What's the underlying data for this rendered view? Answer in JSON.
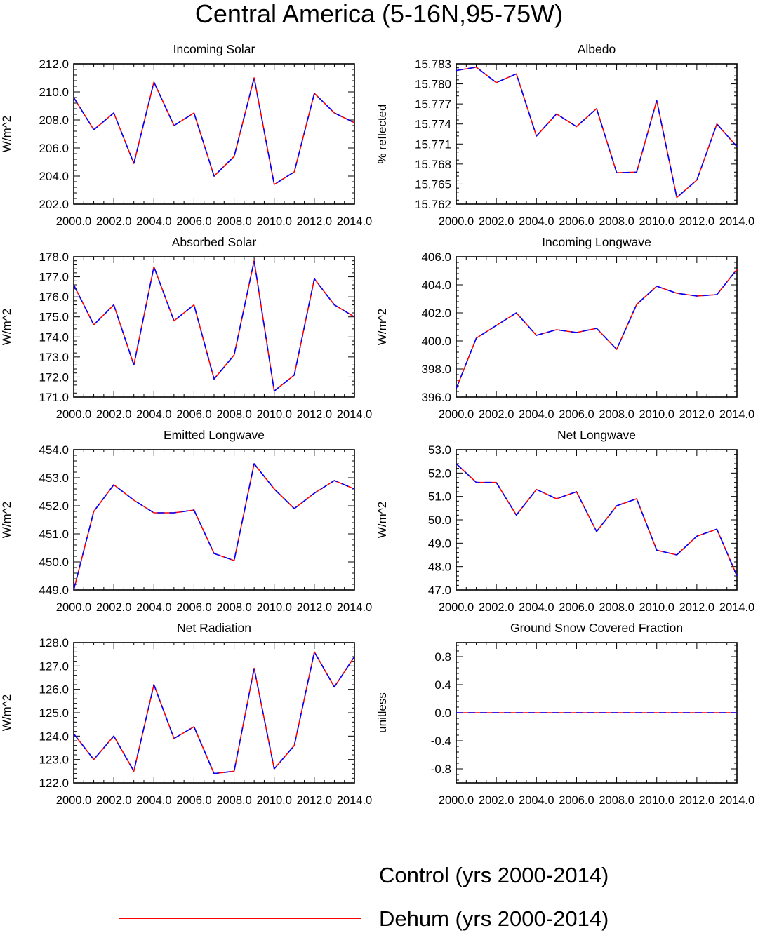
{
  "title": "Central America (5-16N,95-75W)",
  "legend": {
    "items": [
      {
        "label": "Control (yrs 2000-2014)",
        "color": "#0000ff",
        "style": "dashed"
      },
      {
        "label": "Dehum (yrs 2000-2014)",
        "color": "#ff0000",
        "style": "solid"
      }
    ]
  },
  "chart_data": [
    {
      "type": "line",
      "title": "Incoming Solar",
      "xlabel": "",
      "ylabel": "W/m^2",
      "xlim": [
        2000,
        2014
      ],
      "ylim": [
        202,
        212
      ],
      "xticks": [
        2000,
        2002,
        2004,
        2006,
        2008,
        2010,
        2012,
        2014
      ],
      "xtick_labels": [
        "2000.0",
        "2002.0",
        "2004.0",
        "2006.0",
        "2008.0",
        "2010.0",
        "2012.0",
        "2014.0"
      ],
      "yticks": [
        202,
        204,
        206,
        208,
        210,
        212
      ],
      "ytick_labels": [
        "202.0",
        "204.0",
        "206.0",
        "208.0",
        "210.0",
        "212.0"
      ],
      "x": [
        2000,
        2001,
        2002,
        2003,
        2004,
        2005,
        2006,
        2007,
        2008,
        2009,
        2010,
        2011,
        2012,
        2013,
        2014
      ],
      "series": [
        {
          "name": "Control (yrs 2000-2014)",
          "values": [
            209.6,
            207.3,
            208.5,
            204.9,
            210.7,
            207.6,
            208.5,
            204.0,
            205.4,
            211.0,
            203.4,
            204.3,
            209.9,
            208.5,
            207.8
          ]
        },
        {
          "name": "Dehum (yrs 2000-2014)",
          "values": [
            209.6,
            207.3,
            208.5,
            204.9,
            210.7,
            207.6,
            208.5,
            204.0,
            205.4,
            211.0,
            203.4,
            204.3,
            209.9,
            208.5,
            207.8
          ]
        }
      ]
    },
    {
      "type": "line",
      "title": "Albedo",
      "xlabel": "",
      "ylabel": "% reflected",
      "xlim": [
        2000,
        2014
      ],
      "ylim": [
        15.762,
        15.783
      ],
      "xticks": [
        2000,
        2002,
        2004,
        2006,
        2008,
        2010,
        2012,
        2014
      ],
      "xtick_labels": [
        "2000.0",
        "2002.0",
        "2004.0",
        "2006.0",
        "2008.0",
        "2010.0",
        "2012.0",
        "2014.0"
      ],
      "yticks": [
        15.762,
        15.765,
        15.768,
        15.771,
        15.774,
        15.777,
        15.78,
        15.783
      ],
      "ytick_labels": [
        "15.762",
        "15.765",
        "15.768",
        "15.771",
        "15.774",
        "15.777",
        "15.780",
        "15.783"
      ],
      "x": [
        2000,
        2001,
        2002,
        2003,
        2004,
        2005,
        2006,
        2007,
        2008,
        2009,
        2010,
        2011,
        2012,
        2013,
        2014
      ],
      "series": [
        {
          "name": "Control (yrs 2000-2014)",
          "values": [
            15.782,
            15.7825,
            15.7802,
            15.7815,
            15.7722,
            15.7755,
            15.7736,
            15.7763,
            15.7667,
            15.7668,
            15.7775,
            15.763,
            15.7656,
            15.774,
            15.7706
          ]
        },
        {
          "name": "Dehum (yrs 2000-2014)",
          "values": [
            15.782,
            15.7825,
            15.7802,
            15.7815,
            15.7722,
            15.7755,
            15.7736,
            15.7763,
            15.7667,
            15.7668,
            15.7775,
            15.763,
            15.7656,
            15.774,
            15.7706
          ]
        }
      ]
    },
    {
      "type": "line",
      "title": "Absorbed Solar",
      "xlabel": "",
      "ylabel": "W/m^2",
      "xlim": [
        2000,
        2014
      ],
      "ylim": [
        171,
        178
      ],
      "xticks": [
        2000,
        2002,
        2004,
        2006,
        2008,
        2010,
        2012,
        2014
      ],
      "xtick_labels": [
        "2000.0",
        "2002.0",
        "2004.0",
        "2006.0",
        "2008.0",
        "2010.0",
        "2012.0",
        "2014.0"
      ],
      "yticks": [
        171,
        172,
        173,
        174,
        175,
        176,
        177,
        178
      ],
      "ytick_labels": [
        "171.0",
        "172.0",
        "173.0",
        "174.0",
        "175.0",
        "176.0",
        "177.0",
        "178.0"
      ],
      "x": [
        2000,
        2001,
        2002,
        2003,
        2004,
        2005,
        2006,
        2007,
        2008,
        2009,
        2010,
        2011,
        2012,
        2013,
        2014
      ],
      "series": [
        {
          "name": "Control (yrs 2000-2014)",
          "values": [
            176.6,
            174.6,
            175.6,
            172.6,
            177.5,
            174.8,
            175.6,
            171.9,
            173.1,
            177.8,
            171.3,
            172.1,
            176.9,
            175.6,
            175.0
          ]
        },
        {
          "name": "Dehum (yrs 2000-2014)",
          "values": [
            176.6,
            174.6,
            175.6,
            172.6,
            177.5,
            174.8,
            175.6,
            171.9,
            173.1,
            177.8,
            171.3,
            172.1,
            176.9,
            175.6,
            175.0
          ]
        }
      ]
    },
    {
      "type": "line",
      "title": "Incoming Longwave",
      "xlabel": "",
      "ylabel": "W/m^2",
      "xlim": [
        2000,
        2014
      ],
      "ylim": [
        396,
        406
      ],
      "xticks": [
        2000,
        2002,
        2004,
        2006,
        2008,
        2010,
        2012,
        2014
      ],
      "xtick_labels": [
        "2000.0",
        "2002.0",
        "2004.0",
        "2006.0",
        "2008.0",
        "2010.0",
        "2012.0",
        "2014.0"
      ],
      "yticks": [
        396,
        398,
        400,
        402,
        404,
        406
      ],
      "ytick_labels": [
        "396.0",
        "398.0",
        "400.0",
        "402.0",
        "404.0",
        "406.0"
      ],
      "x": [
        2000,
        2001,
        2002,
        2003,
        2004,
        2005,
        2006,
        2007,
        2008,
        2009,
        2010,
        2011,
        2012,
        2013,
        2014
      ],
      "series": [
        {
          "name": "Control (yrs 2000-2014)",
          "values": [
            396.6,
            400.2,
            401.1,
            402.0,
            400.4,
            400.8,
            400.6,
            400.9,
            399.4,
            402.6,
            403.9,
            403.4,
            403.2,
            403.3,
            405.1
          ]
        },
        {
          "name": "Dehum (yrs 2000-2014)",
          "values": [
            396.6,
            400.2,
            401.1,
            402.0,
            400.4,
            400.8,
            400.6,
            400.9,
            399.4,
            402.6,
            403.9,
            403.4,
            403.2,
            403.3,
            405.1
          ]
        }
      ]
    },
    {
      "type": "line",
      "title": "Emitted Longwave",
      "xlabel": "",
      "ylabel": "W/m^2",
      "xlim": [
        2000,
        2014
      ],
      "ylim": [
        449,
        454
      ],
      "xticks": [
        2000,
        2002,
        2004,
        2006,
        2008,
        2010,
        2012,
        2014
      ],
      "xtick_labels": [
        "2000.0",
        "2002.0",
        "2004.0",
        "2006.0",
        "2008.0",
        "2010.0",
        "2012.0",
        "2014.0"
      ],
      "yticks": [
        449,
        450,
        451,
        452,
        453,
        454
      ],
      "ytick_labels": [
        "449.0",
        "450.0",
        "451.0",
        "452.0",
        "453.0",
        "454.0"
      ],
      "x": [
        2000,
        2001,
        2002,
        2003,
        2004,
        2005,
        2006,
        2007,
        2008,
        2009,
        2010,
        2011,
        2012,
        2013,
        2014
      ],
      "series": [
        {
          "name": "Control (yrs 2000-2014)",
          "values": [
            449.0,
            451.8,
            452.75,
            452.2,
            451.75,
            451.75,
            451.85,
            450.3,
            450.05,
            453.5,
            452.6,
            451.9,
            452.45,
            452.9,
            452.6
          ]
        },
        {
          "name": "Dehum (yrs 2000-2014)",
          "values": [
            449.0,
            451.8,
            452.75,
            452.2,
            451.75,
            451.75,
            451.85,
            450.3,
            450.05,
            453.5,
            452.6,
            451.9,
            452.45,
            452.9,
            452.6
          ]
        }
      ]
    },
    {
      "type": "line",
      "title": "Net Longwave",
      "xlabel": "",
      "ylabel": "W/m^2",
      "xlim": [
        2000,
        2014
      ],
      "ylim": [
        47,
        53
      ],
      "xticks": [
        2000,
        2002,
        2004,
        2006,
        2008,
        2010,
        2012,
        2014
      ],
      "xtick_labels": [
        "2000.0",
        "2002.0",
        "2004.0",
        "2006.0",
        "2008.0",
        "2010.0",
        "2012.0",
        "2014.0"
      ],
      "yticks": [
        47,
        48,
        49,
        50,
        51,
        52,
        53
      ],
      "ytick_labels": [
        "47.0",
        "48.0",
        "49.0",
        "50.0",
        "51.0",
        "52.0",
        "53.0"
      ],
      "x": [
        2000,
        2001,
        2002,
        2003,
        2004,
        2005,
        2006,
        2007,
        2008,
        2009,
        2010,
        2011,
        2012,
        2013,
        2014
      ],
      "series": [
        {
          "name": "Control (yrs 2000-2014)",
          "values": [
            52.4,
            51.6,
            51.6,
            50.2,
            51.3,
            50.9,
            51.2,
            49.5,
            50.6,
            50.9,
            48.7,
            48.5,
            49.3,
            49.6,
            47.6
          ]
        },
        {
          "name": "Dehum (yrs 2000-2014)",
          "values": [
            52.4,
            51.6,
            51.6,
            50.2,
            51.3,
            50.9,
            51.2,
            49.5,
            50.6,
            50.9,
            48.7,
            48.5,
            49.3,
            49.6,
            47.6
          ]
        }
      ]
    },
    {
      "type": "line",
      "title": "Net Radiation",
      "xlabel": "",
      "ylabel": "W/m^2",
      "xlim": [
        2000,
        2014
      ],
      "ylim": [
        122,
        128
      ],
      "xticks": [
        2000,
        2002,
        2004,
        2006,
        2008,
        2010,
        2012,
        2014
      ],
      "xtick_labels": [
        "2000.0",
        "2002.0",
        "2004.0",
        "2006.0",
        "2008.0",
        "2010.0",
        "2012.0",
        "2014.0"
      ],
      "yticks": [
        122,
        123,
        124,
        125,
        126,
        127,
        128
      ],
      "ytick_labels": [
        "122.0",
        "123.0",
        "124.0",
        "125.0",
        "126.0",
        "127.0",
        "128.0"
      ],
      "x": [
        2000,
        2001,
        2002,
        2003,
        2004,
        2005,
        2006,
        2007,
        2008,
        2009,
        2010,
        2011,
        2012,
        2013,
        2014
      ],
      "series": [
        {
          "name": "Control (yrs 2000-2014)",
          "values": [
            124.1,
            123.0,
            124.0,
            122.5,
            126.2,
            123.9,
            124.4,
            122.4,
            122.5,
            126.9,
            122.6,
            123.6,
            127.6,
            126.1,
            127.4
          ]
        },
        {
          "name": "Dehum (yrs 2000-2014)",
          "values": [
            124.1,
            123.0,
            124.0,
            122.5,
            126.2,
            123.9,
            124.4,
            122.4,
            122.5,
            126.9,
            122.6,
            123.6,
            127.6,
            126.1,
            127.4
          ]
        }
      ]
    },
    {
      "type": "line",
      "title": "Ground Snow Covered Fraction",
      "xlabel": "",
      "ylabel": "unitless",
      "xlim": [
        2000,
        2014
      ],
      "ylim": [
        -1,
        1
      ],
      "xticks": [
        2000,
        2002,
        2004,
        2006,
        2008,
        2010,
        2012,
        2014
      ],
      "xtick_labels": [
        "2000.0",
        "2002.0",
        "2004.0",
        "2006.0",
        "2008.0",
        "2010.0",
        "2012.0",
        "2014.0"
      ],
      "yticks": [
        -0.8,
        -0.4,
        0.0,
        0.4,
        0.8
      ],
      "ytick_labels": [
        "-0.8",
        "-0.4",
        "0.0",
        "0.4",
        "0.8"
      ],
      "x": [
        2000,
        2001,
        2002,
        2003,
        2004,
        2005,
        2006,
        2007,
        2008,
        2009,
        2010,
        2011,
        2012,
        2013,
        2014
      ],
      "series": [
        {
          "name": "Control (yrs 2000-2014)",
          "values": [
            0,
            0,
            0,
            0,
            0,
            0,
            0,
            0,
            0,
            0,
            0,
            0,
            0,
            0,
            0
          ]
        },
        {
          "name": "Dehum (yrs 2000-2014)",
          "values": [
            0,
            0,
            0,
            0,
            0,
            0,
            0,
            0,
            0,
            0,
            0,
            0,
            0,
            0,
            0
          ]
        }
      ]
    }
  ]
}
